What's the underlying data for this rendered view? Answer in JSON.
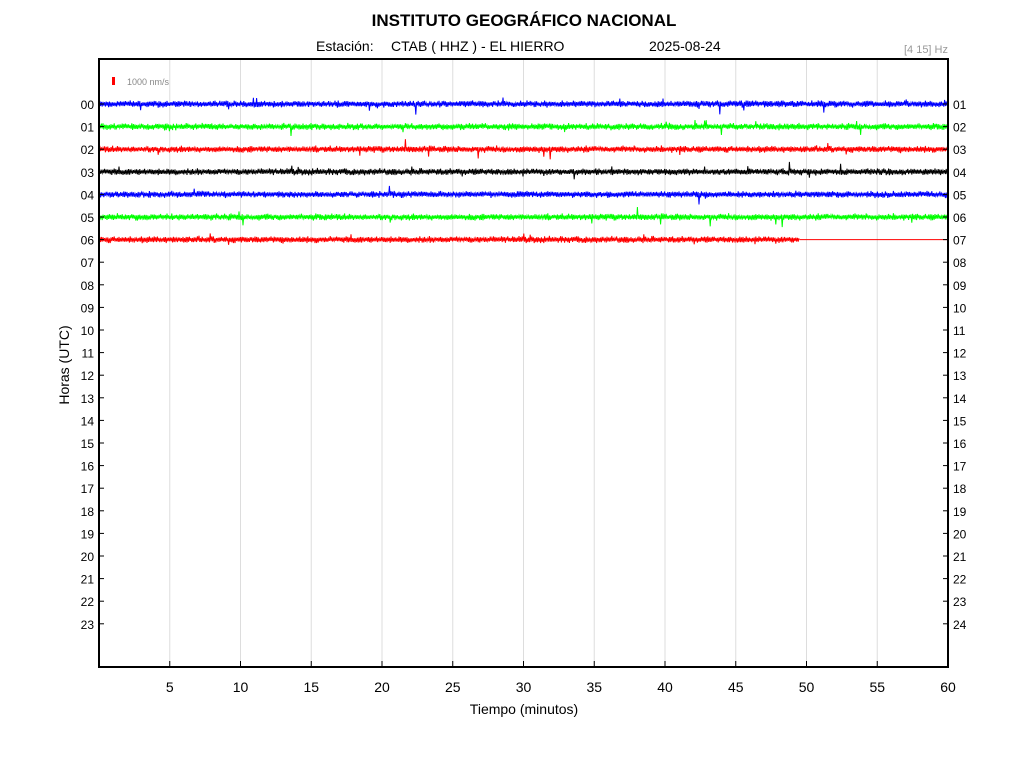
{
  "chart_data": {
    "type": "line",
    "title": "INSTITUTO GEOGRÁFICO NACIONAL",
    "subtitle": {
      "station_label": "Estación:",
      "station": "CTAB ( HHZ ) - EL HIERRO",
      "date": "2025-08-24"
    },
    "filter_band": "[4 15] Hz",
    "scale_label": "1000 nm/s",
    "xlabel": "Tiempo (minutos)",
    "ylabel": "Horas (UTC)",
    "xlim": [
      0,
      60
    ],
    "x_ticks": [
      "5",
      "10",
      "15",
      "20",
      "25",
      "30",
      "35",
      "40",
      "45",
      "50",
      "55",
      "60"
    ],
    "left_hour_labels": [
      "00",
      "01",
      "02",
      "03",
      "04",
      "05",
      "06",
      "07",
      "08",
      "09",
      "10",
      "11",
      "12",
      "13",
      "14",
      "15",
      "16",
      "17",
      "18",
      "19",
      "20",
      "21",
      "22",
      "23"
    ],
    "right_hour_labels": [
      "01",
      "02",
      "03",
      "04",
      "05",
      "06",
      "07",
      "08",
      "09",
      "10",
      "11",
      "12",
      "13",
      "14",
      "15",
      "16",
      "17",
      "18",
      "19",
      "20",
      "21",
      "22",
      "23",
      "24"
    ],
    "grid": true,
    "legend": "top-left",
    "series": [
      {
        "hour": "00",
        "color": "#0000ff",
        "data_end_minute": 60
      },
      {
        "hour": "01",
        "color": "#00ff00",
        "data_end_minute": 60
      },
      {
        "hour": "02",
        "color": "#ff0000",
        "data_end_minute": 60
      },
      {
        "hour": "03",
        "color": "#000000",
        "data_end_minute": 60
      },
      {
        "hour": "04",
        "color": "#0000ff",
        "data_end_minute": 60
      },
      {
        "hour": "05",
        "color": "#00ff00",
        "data_end_minute": 60
      },
      {
        "hour": "06",
        "color": "#ff0000",
        "data_end_minute": 49.5
      }
    ],
    "flat_line_after_end": {
      "hour": "06",
      "color": "#ff0000",
      "until_minute": 60
    }
  }
}
